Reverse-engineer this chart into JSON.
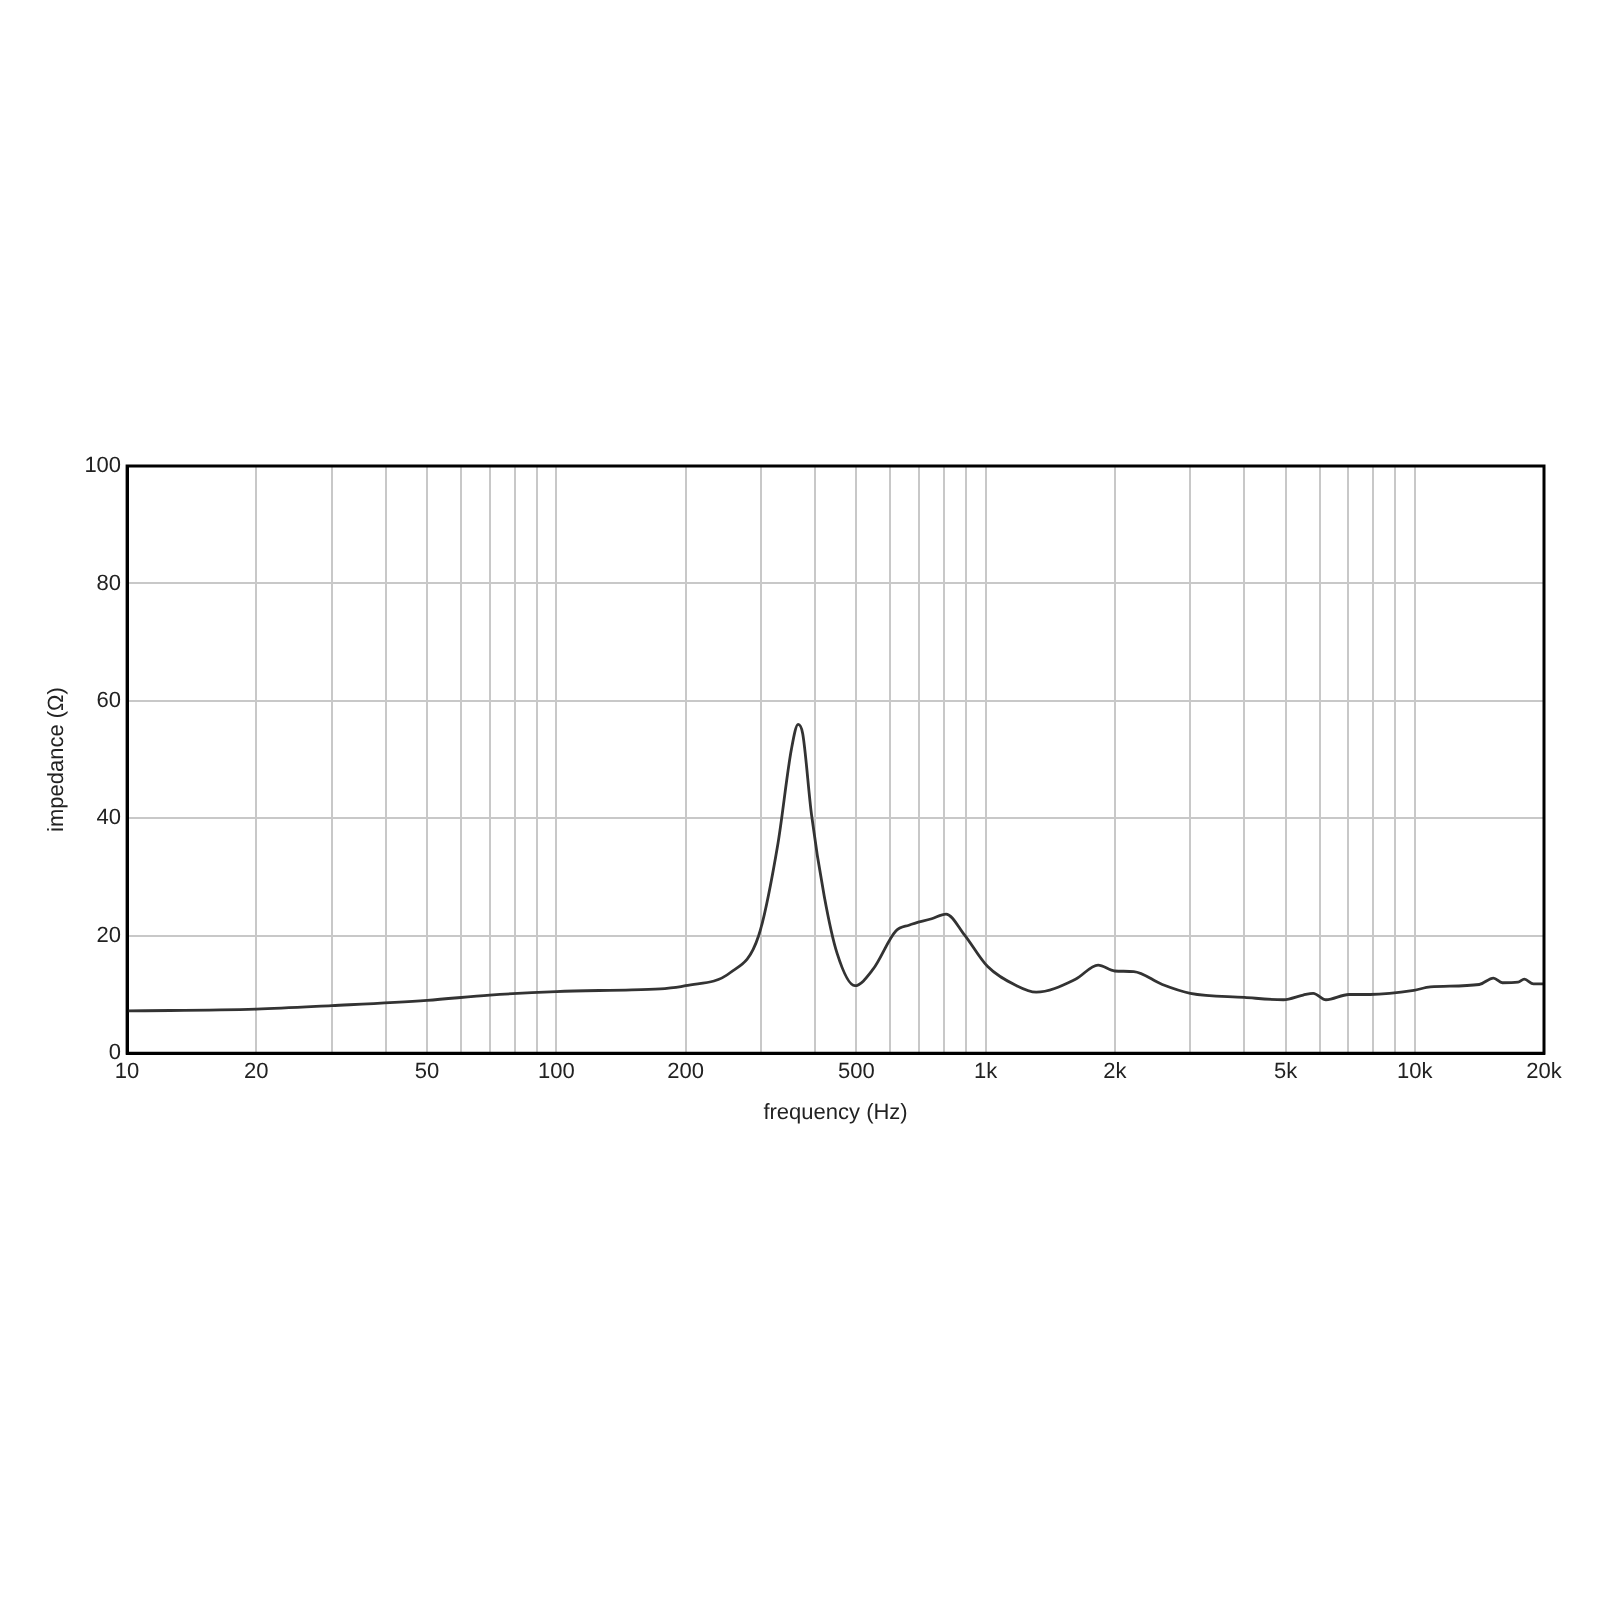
{
  "chart_data": {
    "type": "line",
    "xlabel": "frequency (Hz)",
    "ylabel": "impedance (Ω)",
    "log": "x",
    "grid": true,
    "legend": false,
    "marker": "none",
    "line_style": "solid",
    "xlim": [
      10,
      20000
    ],
    "ylim": [
      0,
      100
    ],
    "xticks": [
      10,
      20,
      {
        "value": 30,
        "label": null
      },
      {
        "value": 40,
        "label": null
      },
      50,
      {
        "value": 60,
        "label": null
      },
      {
        "value": 70,
        "label": null
      },
      {
        "value": 80,
        "label": null
      },
      {
        "value": 90,
        "label": null
      },
      100,
      200,
      {
        "value": 300,
        "label": null
      },
      {
        "value": 400,
        "label": null
      },
      500,
      {
        "value": 600,
        "label": null
      },
      {
        "value": 700,
        "label": null
      },
      {
        "value": 800,
        "label": null
      },
      {
        "value": 900,
        "label": null
      },
      {
        "value": 1000,
        "label": "1k"
      },
      {
        "value": 2000,
        "label": "2k"
      },
      {
        "value": 3000,
        "label": null
      },
      {
        "value": 4000,
        "label": null
      },
      {
        "value": 5000,
        "label": "5k"
      },
      {
        "value": 6000,
        "label": null
      },
      {
        "value": 7000,
        "label": null
      },
      {
        "value": 8000,
        "label": null
      },
      {
        "value": 9000,
        "label": null
      },
      {
        "value": 10000,
        "label": "10k"
      },
      {
        "value": 20000,
        "label": "20k"
      }
    ],
    "yticks": [
      0,
      20,
      40,
      60,
      80,
      100
    ],
    "series": [
      {
        "color": "#333333",
        "x": [
          10,
          20,
          30,
          50,
          70,
          100,
          150,
          179,
          200,
          254,
          296,
          328,
          353,
          366,
          375,
          393,
          421,
          451,
          496,
          547,
          618,
          663,
          749,
          809,
          892,
          1010,
          1181,
          1312,
          1620,
          1829,
          2000,
          2215,
          2581,
          3000,
          4010,
          4945,
          5495,
          5800,
          6210,
          7020,
          7860,
          9950,
          10870,
          14130,
          15250,
          16000,
          17400,
          18000,
          18900,
          20000
        ],
        "values": [
          7.2,
          7.5,
          8.1,
          9.0,
          9.9,
          10.5,
          10.8,
          11.0,
          11.5,
          13.7,
          20.0,
          35.5,
          51.8,
          56.0,
          54.4,
          40.7,
          26.7,
          17.0,
          11.5,
          14.3,
          20.8,
          21.8,
          22.9,
          23.7,
          20.2,
          14.8,
          11.5,
          10.4,
          12.6,
          15.0,
          14.0,
          13.9,
          11.7,
          10.2,
          9.5,
          9.1,
          9.9,
          10.2,
          9.1,
          10.0,
          10.0,
          10.7,
          11.3,
          11.7,
          12.8,
          12.0,
          12.1,
          12.6,
          11.8,
          11.8
        ]
      }
    ]
  }
}
